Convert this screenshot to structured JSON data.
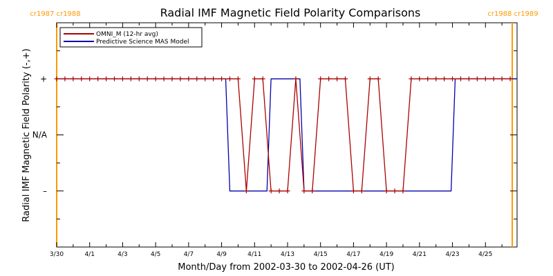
{
  "chart_data": {
    "type": "line",
    "title": "Radial IMF Magnetic Field Polarity Comparisons",
    "xlabel": "Month/Day from 2002-03-30 to 2002-04-26 (UT)",
    "ylabel": "Radial IMF Magnetic Field Polarity (-,+)",
    "xlim": [
      "2002-03-30",
      "2002-04-26T22:00"
    ],
    "ylim": [
      -2,
      2
    ],
    "y_ticks": [
      {
        "value": 1,
        "label": "+"
      },
      {
        "value": 0,
        "label": "N/A"
      },
      {
        "value": -1,
        "label": "–"
      }
    ],
    "x_ticks": [
      "3/30",
      "4/1",
      "4/3",
      "4/5",
      "4/7",
      "4/9",
      "4/11",
      "4/13",
      "4/15",
      "4/17",
      "4/19",
      "4/21",
      "4/23",
      "4/25"
    ],
    "x_tick_dates": [
      "2002-03-30",
      "2002-04-01",
      "2002-04-03",
      "2002-04-05",
      "2002-04-07",
      "2002-04-09",
      "2002-04-11",
      "2002-04-13",
      "2002-04-15",
      "2002-04-17",
      "2002-04-19",
      "2002-04-21",
      "2002-04-23",
      "2002-04-25"
    ],
    "legend_position": "top-left",
    "series": [
      {
        "name": "OMNI_M (12-hr avg)",
        "color": "#aa0000",
        "marker": "plus",
        "x": [
          "2002-03-30T00:00",
          "2002-03-30T12:00",
          "2002-03-31T00:00",
          "2002-03-31T12:00",
          "2002-04-01T00:00",
          "2002-04-01T12:00",
          "2002-04-02T00:00",
          "2002-04-02T12:00",
          "2002-04-03T00:00",
          "2002-04-03T12:00",
          "2002-04-04T00:00",
          "2002-04-04T12:00",
          "2002-04-05T00:00",
          "2002-04-05T12:00",
          "2002-04-06T00:00",
          "2002-04-06T12:00",
          "2002-04-07T00:00",
          "2002-04-07T12:00",
          "2002-04-08T00:00",
          "2002-04-08T12:00",
          "2002-04-09T00:00",
          "2002-04-09T12:00",
          "2002-04-10T00:00",
          "2002-04-10T12:00",
          "2002-04-11T00:00",
          "2002-04-11T12:00",
          "2002-04-12T00:00",
          "2002-04-12T12:00",
          "2002-04-13T00:00",
          "2002-04-13T12:00",
          "2002-04-14T00:00",
          "2002-04-14T12:00",
          "2002-04-15T00:00",
          "2002-04-15T12:00",
          "2002-04-16T00:00",
          "2002-04-16T12:00",
          "2002-04-17T00:00",
          "2002-04-17T12:00",
          "2002-04-18T00:00",
          "2002-04-18T12:00",
          "2002-04-19T00:00",
          "2002-04-19T12:00",
          "2002-04-20T00:00",
          "2002-04-20T12:00",
          "2002-04-21T00:00",
          "2002-04-21T12:00",
          "2002-04-22T00:00",
          "2002-04-22T12:00",
          "2002-04-23T00:00",
          "2002-04-23T12:00",
          "2002-04-24T00:00",
          "2002-04-24T12:00",
          "2002-04-25T00:00",
          "2002-04-25T12:00",
          "2002-04-26T00:00",
          "2002-04-26T12:00"
        ],
        "y": [
          1,
          1,
          1,
          1,
          1,
          1,
          1,
          1,
          1,
          1,
          1,
          1,
          1,
          1,
          1,
          1,
          1,
          1,
          1,
          1,
          1,
          1,
          1,
          -1,
          1,
          1,
          -1,
          -1,
          -1,
          1,
          -1,
          -1,
          1,
          1,
          1,
          1,
          -1,
          -1,
          1,
          1,
          -1,
          -1,
          -1,
          1,
          1,
          1,
          1,
          1,
          1,
          1,
          1,
          1,
          1,
          1,
          1,
          1
        ]
      },
      {
        "name": "Predictive Science MAS Model",
        "color": "#0000aa",
        "marker": "none",
        "x": [
          "2002-03-30T00:00",
          "2002-04-09T06:00",
          "2002-04-09T12:00",
          "2002-04-11T18:00",
          "2002-04-12T00:00",
          "2002-04-13T18:00",
          "2002-04-14T00:00",
          "2002-04-22T22:00",
          "2002-04-23T04:00",
          "2002-04-26T22:00"
        ],
        "y": [
          1,
          1,
          -1,
          -1,
          1,
          1,
          -1,
          -1,
          1,
          1
        ]
      }
    ],
    "carrington_markers": [
      {
        "x": "2002-03-30",
        "label": "cr1987 cr1988"
      },
      {
        "x": "2002-04-26T15:00",
        "label": "cr1988 cr1989"
      }
    ],
    "marker_color": "#ff9900"
  }
}
